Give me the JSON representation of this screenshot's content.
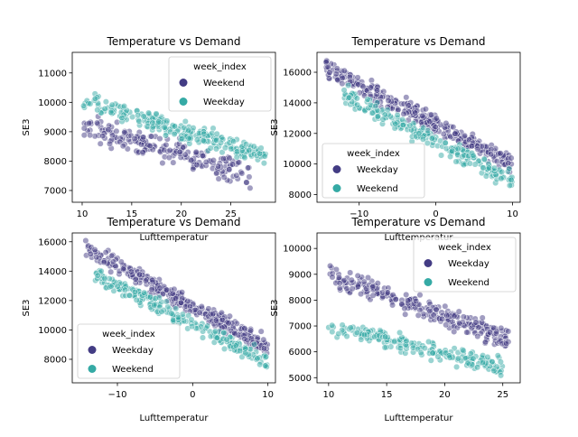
{
  "palette": {
    "purple": "#433c84",
    "teal": "#35aaa5"
  },
  "chart_data": [
    {
      "type": "scatter",
      "title": "Temperature vs Demand",
      "xlabel": "Lufttemperatur",
      "ylabel": "SE3",
      "xlim": [
        9.0,
        29.5
      ],
      "ylim": [
        6600,
        11700
      ],
      "xticks": [
        10,
        15,
        20,
        25
      ],
      "yticks": [
        7000,
        8000,
        9000,
        10000,
        11000
      ],
      "legend": {
        "title": "week_index",
        "position": "upper-right"
      },
      "series": [
        {
          "name": "Weekend",
          "color": "#433c84",
          "trend": {
            "x0": 10,
            "y0": 9200,
            "x1": 26,
            "y1": 7600,
            "x_min": 10,
            "x_max": 27,
            "spread": 600,
            "n": 200
          }
        },
        {
          "name": "Weekday",
          "color": "#35aaa5",
          "trend": {
            "x0": 10,
            "y0": 10100,
            "x1": 26,
            "y1": 8400,
            "x_min": 10,
            "x_max": 28.5,
            "spread": 500,
            "n": 240
          }
        }
      ]
    },
    {
      "type": "scatter",
      "title": "Temperature vs Demand",
      "xlabel": "Lufttemperatur",
      "ylabel": "SE3",
      "xlim": [
        -15.5,
        11.0
      ],
      "ylim": [
        7500,
        17300
      ],
      "xticks": [
        -10,
        0,
        10
      ],
      "yticks": [
        8000,
        10000,
        12000,
        14000,
        16000
      ],
      "legend": {
        "title": "week_index",
        "position": "lower-left"
      },
      "series": [
        {
          "name": "Weekday",
          "color": "#433c84",
          "trend": {
            "x0": -14,
            "y0": 16200,
            "x1": 10,
            "y1": 10000,
            "x_min": -14.5,
            "x_max": 10,
            "spread": 900,
            "n": 320
          }
        },
        {
          "name": "Weekend",
          "color": "#35aaa5",
          "trend": {
            "x0": -14,
            "y0": 15000,
            "x1": 10,
            "y1": 9000,
            "x_min": -12,
            "x_max": 10,
            "spread": 900,
            "n": 220
          }
        }
      ]
    },
    {
      "type": "scatter",
      "title": "Temperature vs Demand",
      "xlabel": "Lufttemperatur",
      "ylabel": "SE3",
      "xlim": [
        -16.0,
        11.0
      ],
      "ylim": [
        6400,
        16600
      ],
      "xticks": [
        -10,
        0,
        10
      ],
      "yticks": [
        8000,
        10000,
        12000,
        14000,
        16000
      ],
      "legend": {
        "title": "week_index",
        "position": "lower-left"
      },
      "series": [
        {
          "name": "Weekday",
          "color": "#433c84",
          "trend": {
            "x0": -14,
            "y0": 15500,
            "x1": 10,
            "y1": 8800,
            "x_min": -14.5,
            "x_max": 10,
            "spread": 900,
            "n": 320
          }
        },
        {
          "name": "Weekend",
          "color": "#35aaa5",
          "trend": {
            "x0": -14,
            "y0": 14000,
            "x1": 10,
            "y1": 7800,
            "x_min": -13,
            "x_max": 10,
            "spread": 800,
            "n": 220
          }
        }
      ]
    },
    {
      "type": "scatter",
      "title": "Temperature vs Demand",
      "xlabel": "Lufttemperatur",
      "ylabel": "SE3",
      "xlim": [
        9.0,
        26.5
      ],
      "ylim": [
        4800,
        10600
      ],
      "xticks": [
        10,
        15,
        20,
        25
      ],
      "yticks": [
        5000,
        6000,
        7000,
        8000,
        9000,
        10000
      ],
      "legend": {
        "title": "week_index",
        "position": "upper-right"
      },
      "series": [
        {
          "name": "Weekday",
          "color": "#433c84",
          "trend": {
            "x0": 10,
            "y0": 9000,
            "x1": 25,
            "y1": 6600,
            "x_min": 10,
            "x_max": 25.5,
            "spread": 600,
            "n": 260
          }
        },
        {
          "name": "Weekend",
          "color": "#35aaa5",
          "trend": {
            "x0": 10,
            "y0": 7000,
            "x1": 25,
            "y1": 5400,
            "x_min": 10,
            "x_max": 25,
            "spread": 500,
            "n": 200
          }
        }
      ]
    }
  ]
}
